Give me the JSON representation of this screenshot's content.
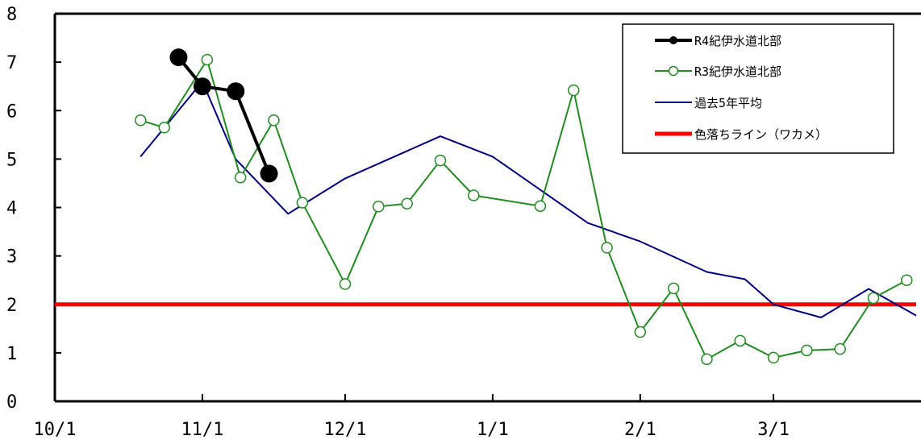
{
  "chart_data": {
    "type": "line",
    "title": "",
    "xlabel": "",
    "ylabel": "",
    "x_axis": {
      "start": "10/1",
      "end": "3/31",
      "ticks": [
        {
          "date": "10/1",
          "label": "10/1"
        },
        {
          "date": "11/1",
          "label": "11/1"
        },
        {
          "date": "12/1",
          "label": "12/1"
        },
        {
          "date": "1/1",
          "label": "1/1"
        },
        {
          "date": "2/1",
          "label": "2/1"
        },
        {
          "date": "3/1",
          "label": "3/1"
        }
      ]
    },
    "ylim": [
      0,
      8
    ],
    "yticks": [
      0,
      1,
      2,
      3,
      4,
      5,
      6,
      7,
      8
    ],
    "grid": false,
    "legend_position": "top-right",
    "series": [
      {
        "name": "R4紀伊水道北部",
        "color": "#000000",
        "marker": "filled-circle",
        "points": [
          {
            "x": "10/27",
            "y": 7.1
          },
          {
            "x": "11/1",
            "y": 6.5
          },
          {
            "x": "11/8",
            "y": 6.4
          },
          {
            "x": "11/15",
            "y": 4.7
          }
        ]
      },
      {
        "name": "R3紀伊水道北部",
        "color": "#228B22",
        "marker": "open-circle",
        "points": [
          {
            "x": "10/19",
            "y": 5.8
          },
          {
            "x": "10/24",
            "y": 5.65
          },
          {
            "x": "11/2",
            "y": 7.05
          },
          {
            "x": "11/9",
            "y": 4.62
          },
          {
            "x": "11/16",
            "y": 5.8
          },
          {
            "x": "11/22",
            "y": 4.1
          },
          {
            "x": "12/1",
            "y": 2.42
          },
          {
            "x": "12/8",
            "y": 4.02
          },
          {
            "x": "12/14",
            "y": 4.08
          },
          {
            "x": "12/21",
            "y": 4.97
          },
          {
            "x": "12/28",
            "y": 4.25
          },
          {
            "x": "1/11",
            "y": 4.03
          },
          {
            "x": "1/18",
            "y": 6.42
          },
          {
            "x": "1/25",
            "y": 3.17
          },
          {
            "x": "2/1",
            "y": 1.43
          },
          {
            "x": "2/8",
            "y": 2.33
          },
          {
            "x": "2/15",
            "y": 0.87
          },
          {
            "x": "2/22",
            "y": 1.25
          },
          {
            "x": "3/1",
            "y": 0.9
          },
          {
            "x": "3/8",
            "y": 1.05
          },
          {
            "x": "3/15",
            "y": 1.08
          },
          {
            "x": "3/22",
            "y": 2.13
          },
          {
            "x": "3/29",
            "y": 2.5
          }
        ]
      },
      {
        "name": "過去5年平均",
        "color": "#000080",
        "marker": "none",
        "points": [
          {
            "x": "10/19",
            "y": 5.05
          },
          {
            "x": "11/1",
            "y": 6.6
          },
          {
            "x": "11/8",
            "y": 5.0
          },
          {
            "x": "11/19",
            "y": 3.87
          },
          {
            "x": "12/1",
            "y": 4.6
          },
          {
            "x": "12/21",
            "y": 5.47
          },
          {
            "x": "1/1",
            "y": 5.05
          },
          {
            "x": "1/21",
            "y": 3.68
          },
          {
            "x": "2/1",
            "y": 3.3
          },
          {
            "x": "2/15",
            "y": 2.67
          },
          {
            "x": "2/23",
            "y": 2.52
          },
          {
            "x": "3/1",
            "y": 2.0
          },
          {
            "x": "3/11",
            "y": 1.73
          },
          {
            "x": "3/21",
            "y": 2.32
          },
          {
            "x": "3/31",
            "y": 1.77
          }
        ]
      },
      {
        "name": "色落ちライン（ワカメ）",
        "color": "#FF0000",
        "marker": "none",
        "points": [
          {
            "x": "10/1",
            "y": 2
          },
          {
            "x": "3/31",
            "y": 2
          }
        ]
      }
    ]
  }
}
